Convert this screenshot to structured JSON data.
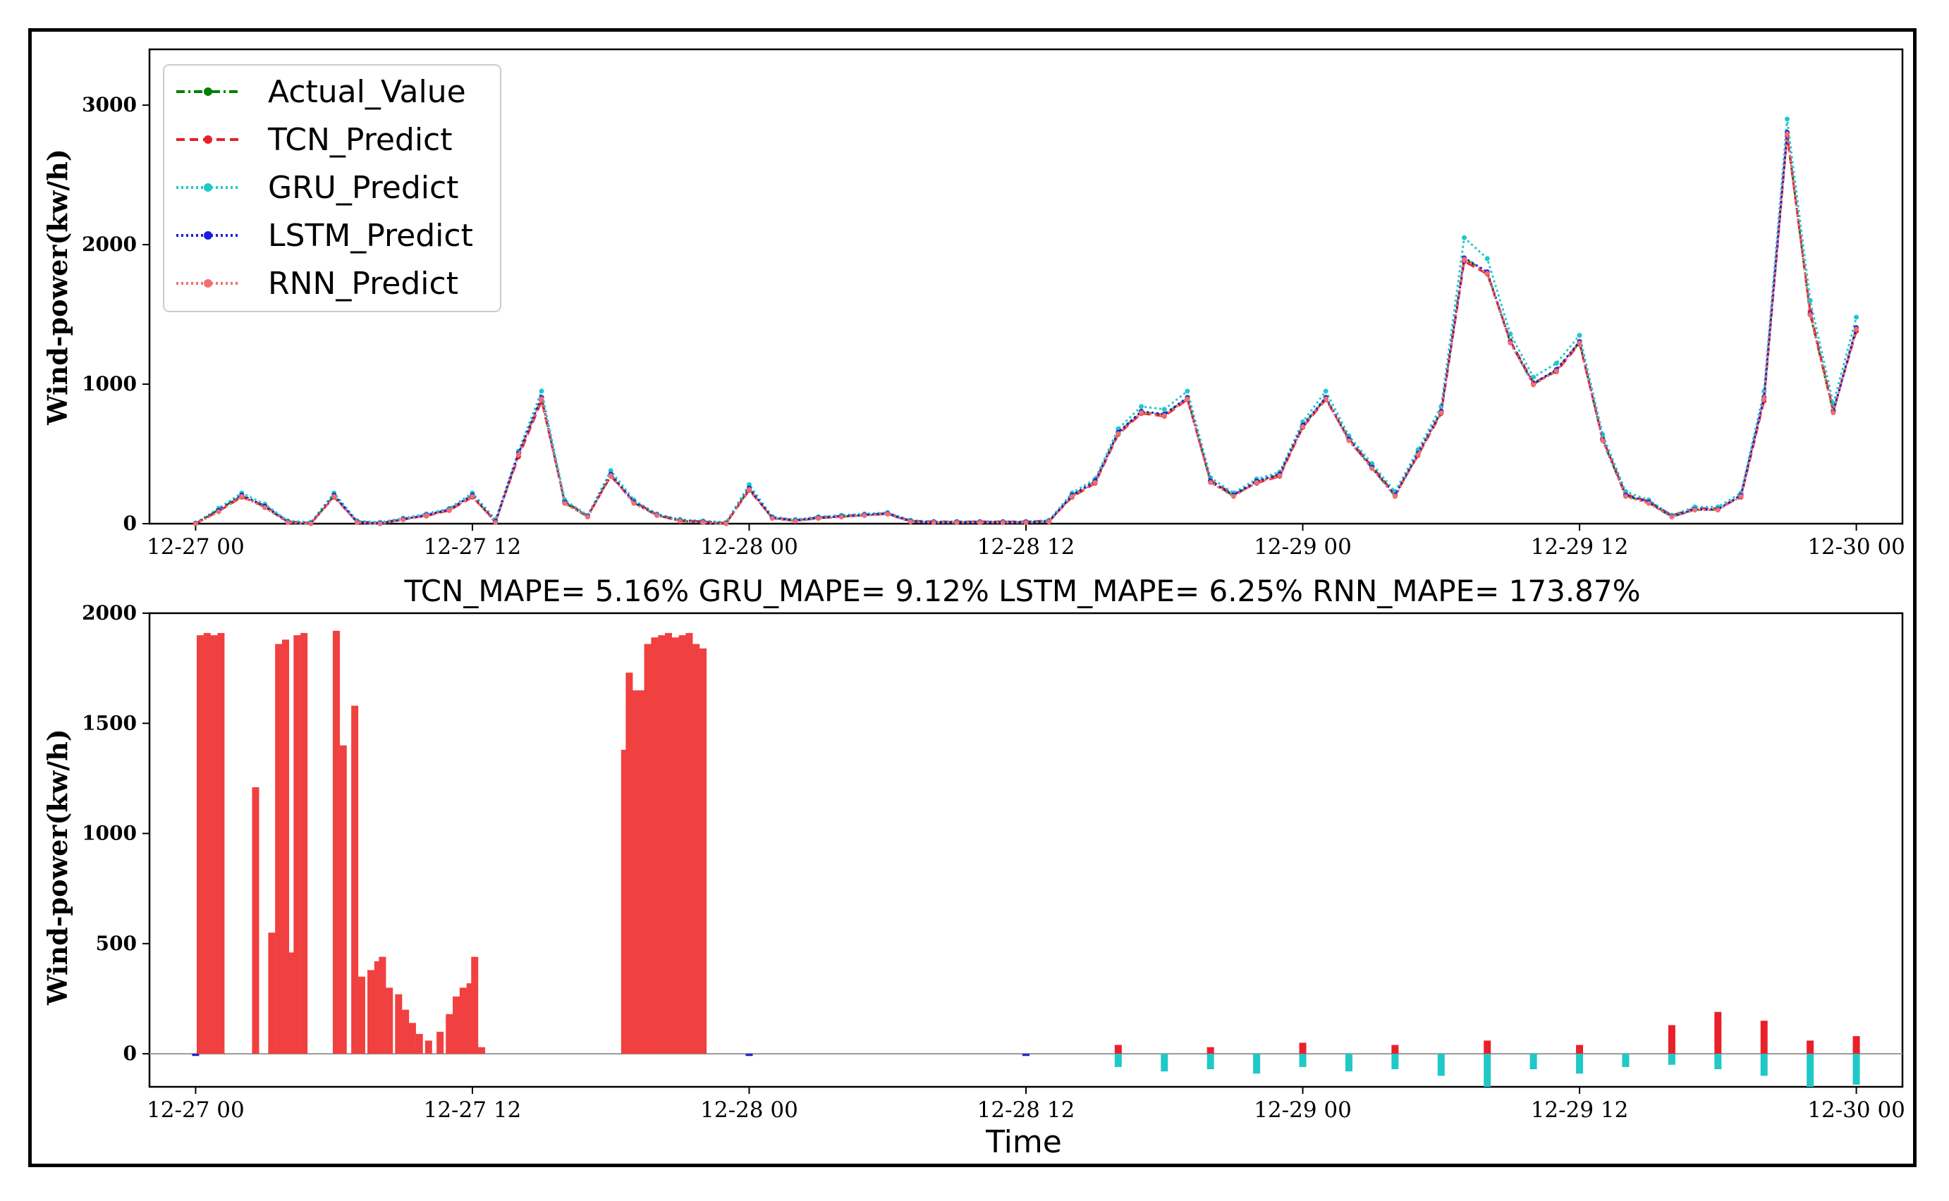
{
  "chart_data": [
    {
      "type": "line",
      "title": "",
      "xlabel": "",
      "ylabel": "Wind-power(kw/h)",
      "xlim": [
        -2,
        74
      ],
      "ylim": [
        0,
        3400
      ],
      "x_ticks": [
        0,
        12,
        24,
        36,
        48,
        60,
        72
      ],
      "x_tick_labels": [
        "12-27 00",
        "12-27 12",
        "12-28 00",
        "12-28 12",
        "12-29 00",
        "12-29 12",
        "12-30 00"
      ],
      "y_ticks": [
        0,
        1000,
        2000,
        3000
      ],
      "legend_position": "top-left",
      "grid": false,
      "x": [
        0,
        1,
        2,
        3,
        4,
        5,
        6,
        7,
        8,
        9,
        10,
        11,
        12,
        13,
        14,
        15,
        16,
        17,
        18,
        19,
        20,
        21,
        22,
        23,
        24,
        25,
        26,
        27,
        28,
        29,
        30,
        31,
        32,
        33,
        34,
        35,
        36,
        37,
        38,
        39,
        40,
        41,
        42,
        43,
        44,
        45,
        46,
        47,
        48,
        49,
        50,
        51,
        52,
        53,
        54,
        55,
        56,
        57,
        58,
        59,
        60,
        61,
        62,
        63,
        64,
        65,
        66,
        67,
        68,
        69,
        70,
        71,
        72
      ],
      "series": [
        {
          "name": "Actual_Value",
          "color": "#008000",
          "style": "dashdot",
          "marker": "dot",
          "values": [
            0,
            100,
            200,
            120,
            10,
            0,
            200,
            10,
            0,
            30,
            60,
            100,
            200,
            10,
            500,
            900,
            150,
            50,
            350,
            150,
            60,
            20,
            10,
            0,
            250,
            40,
            20,
            40,
            50,
            60,
            70,
            15,
            10,
            10,
            10,
            10,
            10,
            15,
            200,
            300,
            650,
            800,
            780,
            900,
            300,
            200,
            300,
            350,
            700,
            900,
            600,
            400,
            200,
            500,
            800,
            1900,
            1800,
            1300,
            1000,
            1100,
            1300,
            600,
            200,
            150,
            50,
            100,
            100,
            200,
            900,
            2800,
            1500,
            800,
            1400
          ]
        },
        {
          "name": "TCN_Predict",
          "color": "#e8202a",
          "style": "dashed",
          "marker": "plus",
          "values": [
            0,
            90,
            190,
            130,
            15,
            5,
            190,
            15,
            5,
            35,
            55,
            95,
            190,
            20,
            480,
            880,
            160,
            55,
            340,
            160,
            65,
            25,
            15,
            5,
            240,
            45,
            25,
            45,
            55,
            65,
            75,
            20,
            15,
            15,
            15,
            15,
            15,
            20,
            190,
            290,
            640,
            790,
            770,
            890,
            310,
            210,
            290,
            340,
            690,
            890,
            610,
            410,
            210,
            490,
            790,
            1880,
            1790,
            1310,
            1010,
            1090,
            1290,
            610,
            210,
            160,
            60,
            110,
            110,
            190,
            880,
            2780,
            1520,
            810,
            1380
          ]
        },
        {
          "name": "GRU_Predict",
          "color": "#20c8c8",
          "style": "dotted",
          "marker": "x",
          "values": [
            5,
            110,
            220,
            140,
            20,
            10,
            220,
            20,
            10,
            40,
            70,
            110,
            220,
            30,
            520,
            950,
            170,
            60,
            380,
            170,
            70,
            30,
            20,
            10,
            280,
            50,
            30,
            50,
            60,
            70,
            80,
            25,
            15,
            15,
            15,
            15,
            15,
            25,
            220,
            320,
            680,
            840,
            820,
            950,
            330,
            220,
            320,
            370,
            730,
            950,
            630,
            430,
            230,
            530,
            840,
            2050,
            1900,
            1360,
            1050,
            1150,
            1350,
            640,
            230,
            170,
            60,
            120,
            120,
            220,
            950,
            2900,
            1600,
            860,
            1480
          ]
        },
        {
          "name": "LSTM_Predict",
          "color": "#1c1ce0",
          "style": "dotted",
          "marker": "tri",
          "values": [
            2,
            95,
            205,
            125,
            12,
            3,
            205,
            12,
            3,
            32,
            62,
            102,
            205,
            12,
            505,
            905,
            155,
            52,
            355,
            155,
            62,
            22,
            12,
            2,
            255,
            42,
            22,
            42,
            52,
            62,
            72,
            17,
            12,
            12,
            12,
            12,
            12,
            17,
            205,
            305,
            655,
            805,
            785,
            905,
            305,
            205,
            305,
            355,
            705,
            905,
            605,
            405,
            205,
            505,
            805,
            1905,
            1805,
            1305,
            1005,
            1105,
            1305,
            605,
            205,
            155,
            52,
            102,
            102,
            205,
            905,
            2805,
            1505,
            805,
            1405
          ]
        },
        {
          "name": "RNN_Predict",
          "color": "#f07070",
          "style": "dotted",
          "marker": "tri-right",
          "values": [
            0,
            85,
            195,
            115,
            8,
            0,
            195,
            8,
            0,
            28,
            58,
            98,
            195,
            8,
            495,
            895,
            145,
            48,
            345,
            145,
            58,
            18,
            8,
            0,
            245,
            38,
            18,
            38,
            48,
            58,
            68,
            13,
            8,
            8,
            8,
            8,
            8,
            13,
            195,
            295,
            645,
            795,
            775,
            895,
            295,
            195,
            295,
            345,
            695,
            895,
            595,
            395,
            195,
            495,
            795,
            1895,
            1795,
            1295,
            995,
            1095,
            1295,
            595,
            195,
            145,
            48,
            98,
            98,
            195,
            895,
            2795,
            1495,
            795,
            1395
          ]
        }
      ]
    },
    {
      "type": "bar",
      "title": "",
      "xlabel": "Time",
      "ylabel": "Wind-power(kw/h)",
      "xlim": [
        -2,
        74
      ],
      "ylim": [
        -150,
        2000
      ],
      "x_ticks": [
        0,
        12,
        24,
        36,
        48,
        60,
        72
      ],
      "x_tick_labels": [
        "12-27 00",
        "12-27 12",
        "12-28 00",
        "12-28 12",
        "12-29 00",
        "12-29 12",
        "12-30 00"
      ],
      "y_ticks": [
        0,
        500,
        1000,
        1500,
        2000
      ],
      "grid": false,
      "annotation": "TCN_MAPE= 5.16%   GRU_MAPE= 9.12%   LSTM_MAPE= 6.25%   RNN_MAPE= 173.87%",
      "error_series": [
        {
          "name": "RNN",
          "color": "#f04040",
          "x": [
            0.2,
            0.5,
            0.8,
            1.1,
            2.6,
            3.3,
            3.6,
            3.9,
            4.1,
            4.4,
            4.7,
            6.1,
            6.4,
            6.9,
            7.2,
            7.6,
            7.9,
            8.1,
            8.4,
            8.8,
            9.1,
            9.4,
            9.7,
            10.1,
            10.6,
            11.0,
            11.3,
            11.6,
            11.9,
            12.1,
            12.4,
            18.6,
            18.8,
            19.0,
            19.3,
            19.6,
            19.9,
            20.2,
            20.5,
            20.8,
            21.1,
            21.4,
            21.7,
            22.0
          ],
          "values": [
            1900,
            1910,
            1900,
            1910,
            1210,
            550,
            1860,
            1880,
            460,
            1900,
            1910,
            1920,
            1400,
            1580,
            350,
            380,
            420,
            440,
            300,
            270,
            200,
            140,
            90,
            60,
            100,
            180,
            260,
            300,
            320,
            440,
            30,
            1380,
            1730,
            1650,
            1650,
            1860,
            1890,
            1900,
            1910,
            1890,
            1900,
            1910,
            1860,
            1840
          ]
        },
        {
          "name": "GRU",
          "color": "#20c8c8",
          "x": [
            40,
            42,
            44,
            46,
            48,
            50,
            52,
            54,
            56,
            58,
            60,
            62,
            64,
            66,
            68,
            70,
            72
          ],
          "values": [
            -60,
            -80,
            -70,
            -90,
            -60,
            -80,
            -70,
            -100,
            -150,
            -70,
            -90,
            -60,
            -50,
            -70,
            -100,
            -150,
            -140
          ]
        },
        {
          "name": "LSTM",
          "color": "#2020d0",
          "x": [
            0,
            24,
            36
          ],
          "values": [
            -10,
            -10,
            -10
          ]
        },
        {
          "name": "TCN",
          "color": "#e8202a",
          "x": [
            40,
            44,
            48,
            52,
            56,
            60,
            64,
            66,
            68,
            70,
            72
          ],
          "values": [
            40,
            30,
            50,
            40,
            60,
            40,
            130,
            190,
            150,
            60,
            80
          ]
        }
      ]
    }
  ]
}
